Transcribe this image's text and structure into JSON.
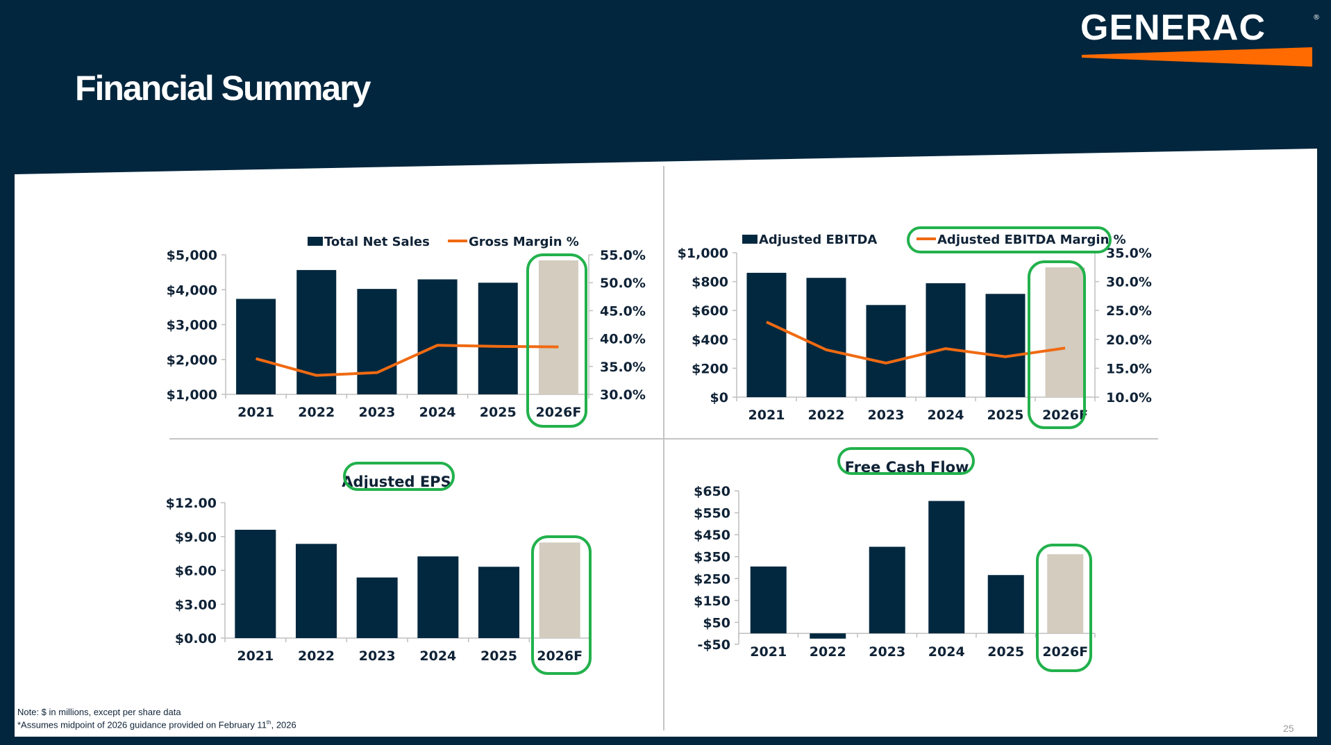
{
  "header": {
    "title": "Financial Summary",
    "logo_text": "GENERAC",
    "logo_mark": "®"
  },
  "colors": {
    "navy": "#02263e",
    "bar": "#02283f",
    "forecast_bar": "#d3ccbf",
    "line": "#f06a12",
    "highlight": "#22b14c",
    "axis": "#bfbfbf"
  },
  "footer": {
    "note_line1": "Note: $ in millions, except per share data",
    "note_line2_prefix": "*Assumes midpoint of 2026 guidance provided on February 11",
    "note_line2_sup": "th",
    "note_line2_suffix": ", 2026",
    "page_number": "25"
  },
  "chart_data": [
    {
      "id": "net-sales",
      "type": "bar+line",
      "categories": [
        "2021",
        "2022",
        "2023",
        "2024",
        "2025",
        "2026F"
      ],
      "series": [
        {
          "name": "Total Net Sales",
          "type": "bar",
          "axis": "left",
          "values": [
            3737,
            4564,
            4022,
            4296,
            4200,
            4840
          ]
        },
        {
          "name": "Gross Margin %",
          "type": "line",
          "axis": "right",
          "values": [
            36.4,
            33.4,
            33.9,
            38.8,
            38.6,
            38.5
          ]
        }
      ],
      "left_axis": {
        "min": 1000,
        "max": 5000,
        "ticks": [
          "$5,000",
          "$4,000",
          "$3,000",
          "$2,000",
          "$1,000"
        ]
      },
      "right_axis": {
        "min": 30,
        "max": 55,
        "ticks": [
          "55.0%",
          "50.0%",
          "45.0%",
          "40.0%",
          "35.0%",
          "30.0%"
        ]
      },
      "legend": "top",
      "forecast_index": 5,
      "highlights": [
        "forecast-bar"
      ]
    },
    {
      "id": "adj-ebitda",
      "type": "bar+line",
      "categories": [
        "2021",
        "2022",
        "2023",
        "2024",
        "2025",
        "2026F"
      ],
      "series": [
        {
          "name": "Adjusted EBITDA",
          "type": "bar",
          "axis": "left",
          "values": [
            861,
            826,
            638,
            789,
            715,
            899
          ]
        },
        {
          "name": "Adjusted EBITDA Margin %",
          "type": "line",
          "axis": "right",
          "values": [
            23.0,
            18.2,
            15.9,
            18.4,
            17.0,
            18.5
          ]
        }
      ],
      "left_axis": {
        "min": 0,
        "max": 1000,
        "ticks": [
          "$1,000",
          "$800",
          "$600",
          "$400",
          "$200",
          "$0"
        ]
      },
      "right_axis": {
        "min": 10,
        "max": 35,
        "ticks": [
          "35.0%",
          "30.0%",
          "25.0%",
          "20.0%",
          "15.0%",
          "10.0%"
        ]
      },
      "legend": "top",
      "forecast_index": 5,
      "highlights": [
        "forecast-bar",
        "legend-line"
      ]
    },
    {
      "id": "adj-eps",
      "type": "bar",
      "title": "Adjusted EPS",
      "categories": [
        "2021",
        "2022",
        "2023",
        "2024",
        "2025",
        "2026F"
      ],
      "values": [
        9.6,
        8.35,
        5.37,
        7.24,
        6.32,
        8.47
      ],
      "left_axis": {
        "min": 0,
        "max": 12,
        "ticks": [
          "$12.00",
          "$9.00",
          "$6.00",
          "$3.00",
          "$0.00"
        ]
      },
      "forecast_index": 5,
      "highlights": [
        "forecast-bar",
        "title"
      ]
    },
    {
      "id": "fcf",
      "type": "bar",
      "title": "Free Cash Flow",
      "categories": [
        "2021",
        "2022",
        "2023",
        "2024",
        "2025",
        "2026F"
      ],
      "values": [
        305,
        -24,
        395,
        604,
        266,
        361
      ],
      "left_axis": {
        "min": -50,
        "max": 650,
        "ticks": [
          "$650",
          "$550",
          "$450",
          "$350",
          "$250",
          "$150",
          "$50",
          "-$50"
        ]
      },
      "forecast_index": 5,
      "highlights": [
        "forecast-bar",
        "title"
      ]
    }
  ]
}
